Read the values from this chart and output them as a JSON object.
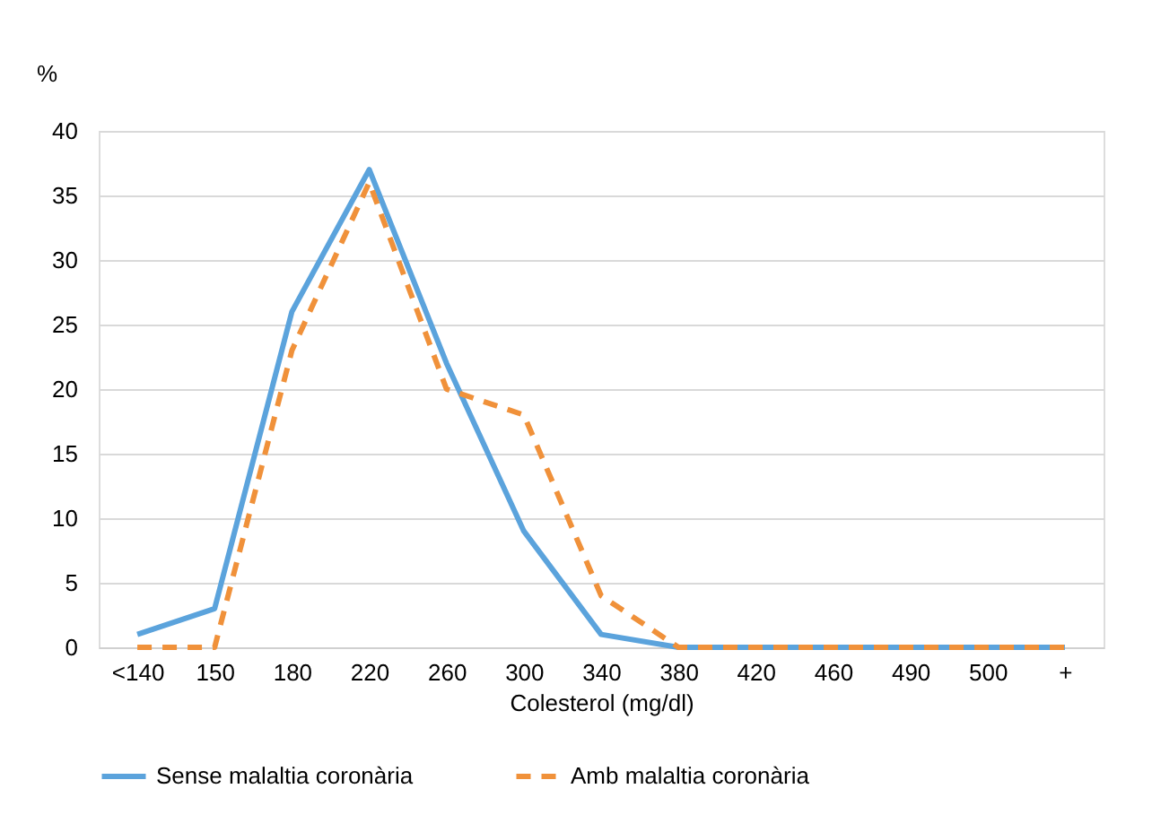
{
  "chart_data": {
    "type": "line",
    "ylabel": "%",
    "xlabel": "Colesterol (mg/dl)",
    "categories": [
      "<140",
      "150",
      "180",
      "220",
      "260",
      "300",
      "340",
      "380",
      "420",
      "460",
      "490",
      "500",
      "+"
    ],
    "series": [
      {
        "name": "Sense malaltia coronària",
        "color": "#5ba3dc",
        "line_style": "solid",
        "values": [
          1,
          3,
          26,
          37,
          22,
          9,
          1,
          0,
          0,
          0,
          0,
          0,
          0
        ]
      },
      {
        "name": "Amb malaltia coronària",
        "color": "#f0913a",
        "line_style": "dashed",
        "values": [
          0,
          0,
          23,
          36,
          20,
          18,
          4,
          0,
          0,
          0,
          0,
          0,
          0
        ]
      }
    ],
    "ylim": [
      0,
      40
    ],
    "yticks": [
      0,
      5,
      10,
      15,
      20,
      25,
      30,
      35,
      40
    ],
    "grid": "y",
    "legend": "bottom",
    "marker": "none"
  }
}
